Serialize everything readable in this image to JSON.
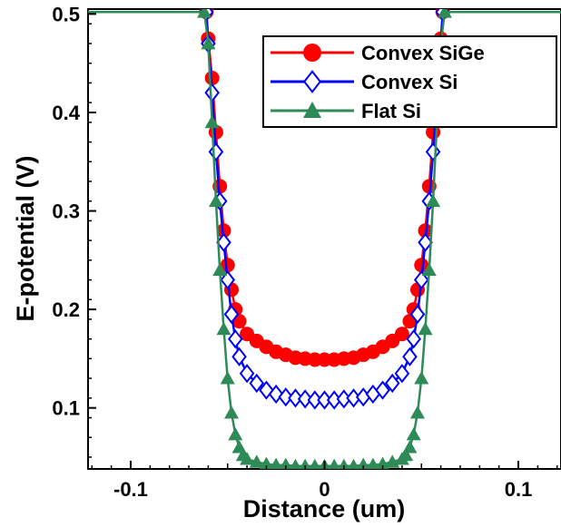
{
  "chart_data": {
    "type": "line",
    "title": "",
    "xlabel": "Distance (um)",
    "ylabel": "E-potential (V)",
    "xlim": [
      -0.122,
      0.122
    ],
    "ylim": [
      0.038,
      0.505
    ],
    "xticks": [
      -0.1,
      0,
      0.1
    ],
    "xtick_labels": [
      "-0.1",
      "0",
      "0.1"
    ],
    "yticks": [
      0.1,
      0.2,
      0.3,
      0.4,
      0.5
    ],
    "ytick_labels": [
      "0.1",
      "0.2",
      "0.3",
      "0.4",
      "0.5"
    ],
    "grid": false,
    "legend_position": "top-right",
    "series": [
      {
        "name": "Convex SiGe",
        "color": "#ff0000",
        "marker": "circle",
        "x": [
          -0.13,
          -0.061,
          -0.06,
          -0.058,
          -0.056,
          -0.054,
          -0.052,
          -0.05,
          -0.048,
          -0.046,
          -0.044,
          -0.04,
          -0.035,
          -0.03,
          -0.025,
          -0.02,
          -0.015,
          -0.01,
          -0.005,
          0,
          0.005,
          0.01,
          0.015,
          0.02,
          0.025,
          0.03,
          0.035,
          0.04,
          0.044,
          0.046,
          0.048,
          0.05,
          0.052,
          0.054,
          0.056,
          0.058,
          0.06,
          0.061,
          0.13
        ],
        "y": [
          0.502,
          0.502,
          0.475,
          0.435,
          0.38,
          0.325,
          0.28,
          0.245,
          0.22,
          0.2,
          0.188,
          0.175,
          0.168,
          0.162,
          0.157,
          0.154,
          0.151,
          0.15,
          0.149,
          0.149,
          0.149,
          0.15,
          0.151,
          0.154,
          0.157,
          0.162,
          0.168,
          0.175,
          0.188,
          0.2,
          0.22,
          0.245,
          0.28,
          0.325,
          0.38,
          0.435,
          0.475,
          0.502,
          0.502
        ]
      },
      {
        "name": "Convex Si",
        "color": "#0000ff",
        "marker": "diamond",
        "x": [
          -0.13,
          -0.061,
          -0.06,
          -0.058,
          -0.056,
          -0.054,
          -0.052,
          -0.05,
          -0.048,
          -0.046,
          -0.044,
          -0.04,
          -0.035,
          -0.03,
          -0.025,
          -0.02,
          -0.015,
          -0.01,
          -0.005,
          0,
          0.005,
          0.01,
          0.015,
          0.02,
          0.025,
          0.03,
          0.035,
          0.04,
          0.044,
          0.046,
          0.048,
          0.05,
          0.052,
          0.054,
          0.056,
          0.058,
          0.06,
          0.061,
          0.13
        ],
        "y": [
          0.502,
          0.502,
          0.47,
          0.42,
          0.36,
          0.31,
          0.268,
          0.23,
          0.195,
          0.17,
          0.152,
          0.135,
          0.125,
          0.118,
          0.114,
          0.111,
          0.11,
          0.109,
          0.108,
          0.108,
          0.108,
          0.109,
          0.11,
          0.111,
          0.114,
          0.118,
          0.125,
          0.135,
          0.152,
          0.17,
          0.195,
          0.23,
          0.268,
          0.31,
          0.36,
          0.42,
          0.47,
          0.502,
          0.502
        ]
      },
      {
        "name": "Flat Si",
        "color": "#2e8b57",
        "marker": "triangle",
        "x": [
          -0.13,
          -0.062,
          -0.06,
          -0.058,
          -0.056,
          -0.054,
          -0.052,
          -0.05,
          -0.048,
          -0.046,
          -0.044,
          -0.042,
          -0.04,
          -0.035,
          -0.03,
          -0.025,
          -0.02,
          -0.015,
          -0.01,
          -0.005,
          0,
          0.005,
          0.01,
          0.015,
          0.02,
          0.025,
          0.03,
          0.035,
          0.04,
          0.042,
          0.044,
          0.046,
          0.048,
          0.05,
          0.052,
          0.054,
          0.056,
          0.058,
          0.06,
          0.062,
          0.13
        ],
        "y": [
          0.502,
          0.502,
          0.47,
          0.39,
          0.31,
          0.24,
          0.18,
          0.13,
          0.095,
          0.073,
          0.06,
          0.052,
          0.048,
          0.045,
          0.043,
          0.042,
          0.042,
          0.041,
          0.041,
          0.041,
          0.041,
          0.041,
          0.041,
          0.041,
          0.042,
          0.042,
          0.043,
          0.045,
          0.048,
          0.052,
          0.06,
          0.073,
          0.095,
          0.13,
          0.18,
          0.24,
          0.31,
          0.39,
          0.47,
          0.502,
          0.502
        ]
      }
    ]
  }
}
